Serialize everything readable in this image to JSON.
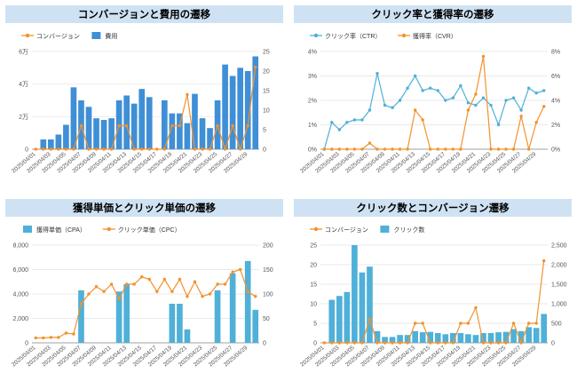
{
  "dates": [
    "2025/04/01",
    "2025/04/02",
    "2025/04/03",
    "2025/04/04",
    "2025/04/05",
    "2025/04/06",
    "2025/04/07",
    "2025/04/08",
    "2025/04/09",
    "2025/04/10",
    "2025/04/11",
    "2025/04/12",
    "2025/04/13",
    "2025/04/14",
    "2025/04/15",
    "2025/04/16",
    "2025/04/17",
    "2025/04/18",
    "2025/04/19",
    "2025/04/20",
    "2025/04/21",
    "2025/04/22",
    "2025/04/23",
    "2025/04/24",
    "2025/04/25",
    "2025/04/26",
    "2025/04/27",
    "2025/04/28",
    "2025/04/29",
    "2025/04/30"
  ],
  "colors": {
    "line": "#f2922d",
    "bar": "#3f8fd6",
    "cyan": "#4fb0d8",
    "title_bg": "#cfe2f3",
    "grid": "#e3e3e3"
  },
  "chart_data": [
    {
      "id": "c1",
      "type": "bar",
      "title": "コンバージョンと費用の遷移",
      "legend": "top-left",
      "bar_series": {
        "name": "費用",
        "axis": "left",
        "color": "#3f8fd6",
        "values": [
          0,
          6000,
          6000,
          9000,
          15000,
          38000,
          30000,
          26000,
          19000,
          18000,
          19000,
          30000,
          33000,
          28000,
          37000,
          32000,
          0,
          30000,
          22000,
          22000,
          16000,
          34000,
          19000,
          13000,
          30000,
          52000,
          45000,
          50000,
          48000,
          57000
        ]
      },
      "line_series": {
        "name": "コンバージョン",
        "axis": "right",
        "color": "#f2922d",
        "values": [
          0,
          0,
          0,
          0,
          0,
          0,
          6,
          0,
          0,
          0,
          0,
          6,
          6,
          0,
          0,
          0,
          0,
          0,
          6,
          6,
          14,
          0,
          0,
          0,
          6,
          0,
          6,
          0,
          6,
          21
        ]
      },
      "left_ticks": [
        0,
        20000,
        40000,
        60000
      ],
      "left_tick_labels": [
        "0",
        "2万",
        "4万",
        "6万"
      ],
      "right_ticks": [
        0,
        5,
        10,
        15,
        20,
        25
      ],
      "right_tick_labels": [
        "0",
        "5",
        "10",
        "15",
        "20",
        "25"
      ],
      "ylim_left": [
        0,
        60000
      ],
      "ylim_right": [
        0,
        25
      ],
      "grid": true
    },
    {
      "id": "c2",
      "type": "line",
      "title": "クリック率と獲得率の遷移",
      "legend": "top-left",
      "line_series": [
        {
          "name": "クリック率（CTR）",
          "axis": "left",
          "color": "#4fb0d8",
          "values": [
            0,
            1.1,
            0.8,
            1.1,
            1.2,
            1.2,
            1.6,
            3.1,
            1.8,
            1.7,
            2.0,
            2.5,
            3.0,
            2.4,
            2.5,
            2.4,
            2.0,
            2.1,
            2.6,
            1.9,
            1.8,
            2.1,
            1.8,
            1.0,
            2.0,
            2.1,
            1.6,
            2.5,
            2.3,
            2.4
          ]
        },
        {
          "name": "獲得率（CVR）",
          "axis": "right",
          "color": "#f2922d",
          "values": [
            0,
            0,
            0,
            0,
            0,
            0,
            0.5,
            0,
            0,
            0,
            0,
            0,
            3.2,
            2.4,
            0,
            0,
            0,
            0,
            0,
            3.2,
            4.5,
            7.6,
            0,
            0,
            0,
            0,
            2.7,
            0,
            2.2,
            3.5
          ]
        }
      ],
      "left_ticks": [
        0,
        1,
        2,
        3,
        4
      ],
      "left_tick_labels": [
        "0%",
        "1%",
        "2%",
        "3%",
        "4%"
      ],
      "right_ticks": [
        0,
        2,
        4,
        6,
        8
      ],
      "right_tick_labels": [
        "0%",
        "2%",
        "4%",
        "6%",
        "8%"
      ],
      "ylim_left": [
        0,
        4
      ],
      "ylim_right": [
        0,
        8
      ],
      "grid": true
    },
    {
      "id": "c3",
      "type": "bar",
      "title": "獲得単価とクリック単価の遷移",
      "legend": "top-left",
      "bar_series": {
        "name": "獲得単価（CPA）",
        "axis": "left",
        "color": "#4fb0d8",
        "values": [
          0,
          0,
          0,
          0,
          0,
          0,
          4300,
          0,
          0,
          0,
          0,
          4200,
          4800,
          0,
          0,
          0,
          0,
          0,
          3200,
          3200,
          1100,
          0,
          0,
          0,
          4300,
          0,
          5700,
          0,
          6700,
          2700
        ]
      },
      "line_series": {
        "name": "クリック単価（CPC）",
        "axis": "right",
        "color": "#f2922d",
        "values": [
          10,
          10,
          11,
          11,
          20,
          18,
          80,
          100,
          115,
          105,
          120,
          90,
          120,
          120,
          135,
          130,
          105,
          130,
          105,
          130,
          95,
          125,
          95,
          100,
          120,
          120,
          145,
          150,
          105,
          95
        ]
      },
      "left_ticks": [
        0,
        2000,
        4000,
        6000,
        8000
      ],
      "left_tick_labels": [
        "0",
        "2,000",
        "4,000",
        "6,000",
        "8,000"
      ],
      "right_ticks": [
        0,
        50,
        100,
        150,
        200
      ],
      "right_tick_labels": [
        "0",
        "50",
        "100",
        "150",
        "200"
      ],
      "ylim_left": [
        0,
        8000
      ],
      "ylim_right": [
        0,
        200
      ],
      "grid": true
    },
    {
      "id": "c4",
      "type": "bar",
      "title": "クリック数とコンバージョン遷移",
      "legend": "top-left",
      "bar_series": {
        "name": "クリック数",
        "axis": "right",
        "color": "#4fb0d8",
        "values": [
          0,
          1100,
          1200,
          1300,
          2500,
          1800,
          1950,
          300,
          150,
          150,
          200,
          200,
          300,
          270,
          280,
          250,
          220,
          250,
          250,
          220,
          200,
          250,
          250,
          270,
          280,
          350,
          300,
          400,
          380,
          740
        ]
      },
      "line_series": {
        "name": "コンバージョン",
        "axis": "left",
        "color": "#f2922d",
        "values": [
          0,
          0,
          0,
          0,
          0,
          0,
          6,
          0,
          0,
          0,
          0,
          0,
          5,
          5,
          0,
          0,
          0,
          0,
          5,
          5,
          9,
          0,
          0,
          0,
          0,
          5,
          0,
          5,
          5,
          21
        ]
      },
      "left_ticks": [
        0,
        5,
        10,
        15,
        20,
        25
      ],
      "left_tick_labels": [
        "0",
        "5",
        "10",
        "15",
        "20",
        "25"
      ],
      "right_ticks": [
        0,
        500,
        1000,
        1500,
        2000,
        2500
      ],
      "right_tick_labels": [
        "0",
        "500",
        "1,000",
        "1,500",
        "2,000",
        "2,500"
      ],
      "ylim_left": [
        0,
        25
      ],
      "ylim_right": [
        0,
        2500
      ],
      "grid": true
    }
  ]
}
